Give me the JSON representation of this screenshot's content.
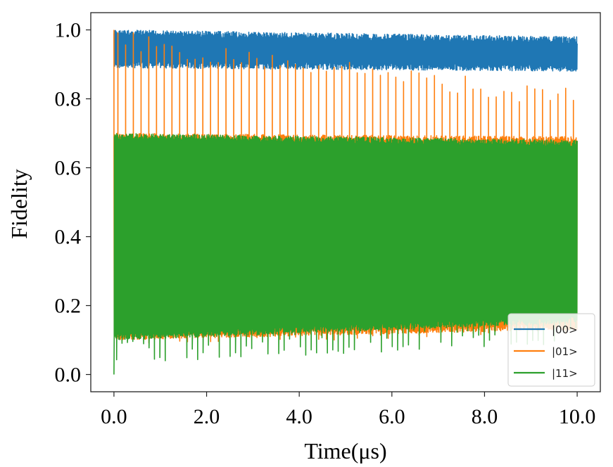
{
  "chart_data": {
    "type": "line",
    "title": "",
    "xlabel": "Time(μs)",
    "ylabel": "Fidelity",
    "xlim": [
      -0.5,
      10.5
    ],
    "ylim": [
      -0.05,
      1.05
    ],
    "xticks": [
      0,
      2,
      4,
      6,
      8,
      10
    ],
    "xtick_labels": [
      "0.0",
      "2.0",
      "4.0",
      "6.0",
      "8.0",
      "10.0"
    ],
    "yticks": [
      0.0,
      0.2,
      0.4,
      0.6,
      0.8,
      1.0
    ],
    "ytick_labels": [
      "0.0",
      "0.2",
      "0.4",
      "0.6",
      "0.8",
      "1.0"
    ],
    "grid": false,
    "legend_position": "bottom-right",
    "series": [
      {
        "name": "|00>",
        "color": "#1f77b4",
        "description": "oscillating band",
        "band_start": [
          0.89,
          1.0
        ],
        "band_end": [
          0.88,
          0.98
        ],
        "peak_count": 0
      },
      {
        "name": "|01>",
        "color": "#ff7f0e",
        "description": "oscillating band with periodic spikes",
        "band_start": [
          0.1,
          0.7
        ],
        "band_end": [
          0.13,
          0.69
        ],
        "spike_max_start": 1.0,
        "spike_max_end": 0.83,
        "spike_min_start": 0.08,
        "spike_min_end": 0.12,
        "peak_count": 60
      },
      {
        "name": "|11>",
        "color": "#2ca02c",
        "description": "oscillating band with periodic dips",
        "band_start": [
          0.1,
          0.7
        ],
        "band_end": [
          0.15,
          0.68
        ],
        "dip_min_start": 0.03,
        "dip_min_end": 0.09,
        "initial_value": 0.0,
        "peak_count": 85
      }
    ]
  }
}
